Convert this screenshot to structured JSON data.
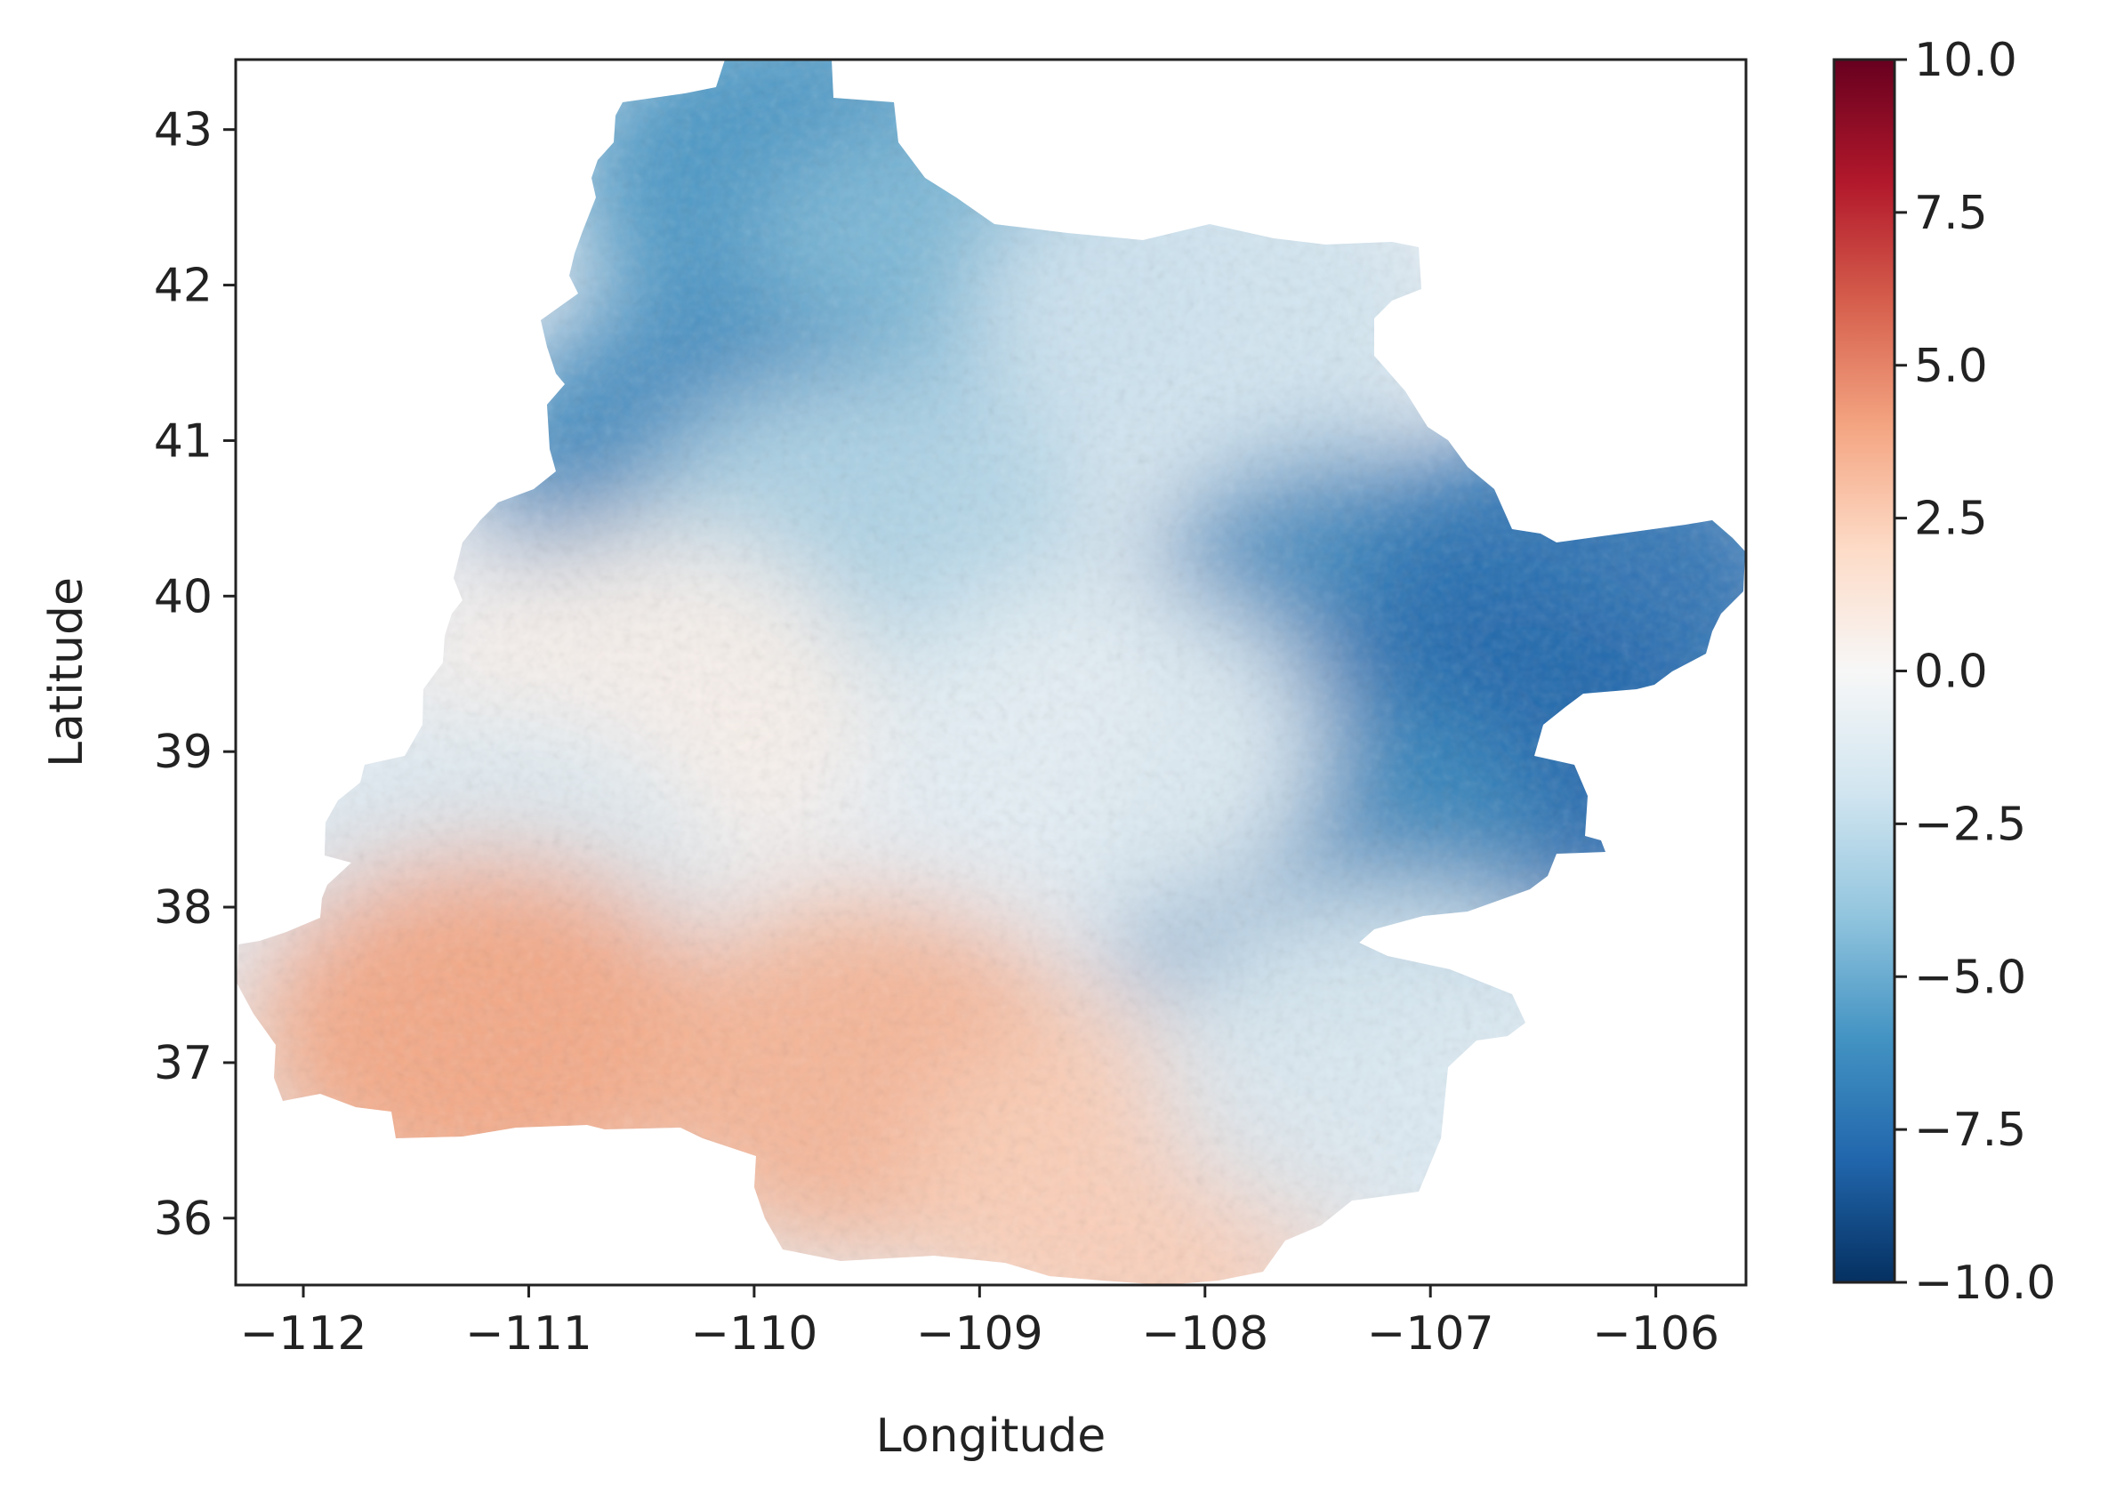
{
  "chart_data": {
    "type": "heatmap",
    "title": "",
    "xlabel": "Longitude",
    "ylabel": "Latitude",
    "xlim": [
      -112.3,
      -105.6
    ],
    "ylim": [
      35.57,
      43.45
    ],
    "x_ticks": [
      -112,
      -111,
      -110,
      -109,
      -108,
      -107,
      -106
    ],
    "x_tick_labels": [
      "−112",
      "−111",
      "−110",
      "−109",
      "−108",
      "−107",
      "−106"
    ],
    "y_ticks": [
      36,
      37,
      38,
      39,
      40,
      41,
      42,
      43
    ],
    "y_tick_labels": [
      "36",
      "37",
      "38",
      "39",
      "40",
      "41",
      "42",
      "43"
    ],
    "grid": false,
    "colormap": "RdBu_r",
    "colorbar": {
      "vmin": -10.0,
      "vmax": 10.0,
      "ticks": [
        -10.0,
        -7.5,
        -5.0,
        -2.5,
        0.0,
        2.5,
        5.0,
        7.5,
        10.0
      ],
      "tick_labels": [
        "−10.0",
        "−7.5",
        "−5.0",
        "−2.5",
        "0.0",
        "2.5",
        "5.0",
        "7.5",
        "10.0"
      ]
    },
    "regions": [
      {
        "lon": -109.8,
        "lat": 42.7,
        "value": -6.0
      },
      {
        "lon": -109.0,
        "lat": 42.0,
        "value": -4.5
      },
      {
        "lon": -108.0,
        "lat": 41.8,
        "value": -2.0
      },
      {
        "lon": -110.2,
        "lat": 40.8,
        "value": -6.5
      },
      {
        "lon": -109.5,
        "lat": 40.3,
        "value": -3.0
      },
      {
        "lon": -107.3,
        "lat": 39.8,
        "value": -6.5
      },
      {
        "lon": -106.3,
        "lat": 40.0,
        "value": -7.5
      },
      {
        "lon": -106.7,
        "lat": 38.9,
        "value": -8.0
      },
      {
        "lon": -107.5,
        "lat": 38.3,
        "value": -6.5
      },
      {
        "lon": -108.5,
        "lat": 39.0,
        "value": -1.0
      },
      {
        "lon": -110.5,
        "lat": 39.3,
        "value": 0.5
      },
      {
        "lon": -111.2,
        "lat": 38.1,
        "value": -1.5
      },
      {
        "lon": -111.2,
        "lat": 37.2,
        "value": 4.0
      },
      {
        "lon": -109.5,
        "lat": 36.9,
        "value": 3.5
      },
      {
        "lon": -108.3,
        "lat": 36.2,
        "value": 2.5
      },
      {
        "lon": -107.2,
        "lat": 37.0,
        "value": -1.5
      }
    ]
  }
}
